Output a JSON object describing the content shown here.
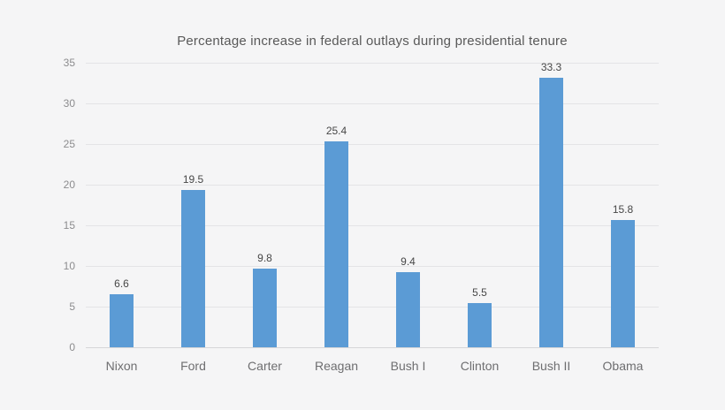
{
  "chart_data": {
    "type": "bar",
    "title": "Percentage increase in federal outlays during presidential tenure",
    "categories": [
      "Nixon",
      "Ford",
      "Carter",
      "Reagan",
      "Bush I",
      "Clinton",
      "Bush II",
      "Obama"
    ],
    "values": [
      6.6,
      19.5,
      9.8,
      25.4,
      9.4,
      5.5,
      33.3,
      15.8
    ],
    "value_labels": [
      "6.6",
      "19.5",
      "9.8",
      "25.4",
      "9.4",
      "5.5",
      "33.3",
      "15.8"
    ],
    "xlabel": "",
    "ylabel": "",
    "ylim": [
      0,
      35
    ],
    "yticks": [
      0,
      5,
      10,
      15,
      20,
      25,
      30,
      35
    ],
    "grid": "horizontal",
    "legend": "none",
    "bar_color": "#5b9bd5",
    "background_color": "#f5f5f6"
  }
}
